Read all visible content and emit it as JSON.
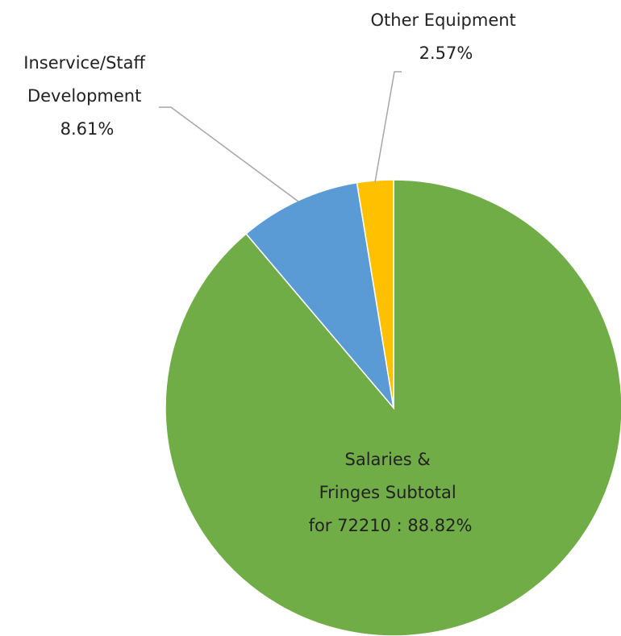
{
  "chart_data": {
    "type": "pie",
    "slices": [
      {
        "name": "Salaries & Fringes Subtotal for 72210",
        "value": 88.82,
        "color": "#70ad47",
        "label_lines": [
          "Salaries &",
          "Fringes Subtotal",
          "for 72210 : 88.82%"
        ],
        "label_placement": "inside"
      },
      {
        "name": "Inservice/Staff Development",
        "value": 8.61,
        "color": "#5b9bd5",
        "label_lines": [
          "Inservice/Staff",
          "Development",
          "8.61%"
        ],
        "label_placement": "outside-left"
      },
      {
        "name": "Other Equipment",
        "value": 2.57,
        "color": "#ffc000",
        "label_lines": [
          "Other Equipment",
          "2.57%"
        ],
        "label_placement": "outside-top"
      }
    ],
    "start_angle": "12 o'clock",
    "direction": "clockwise",
    "legend": "none"
  }
}
